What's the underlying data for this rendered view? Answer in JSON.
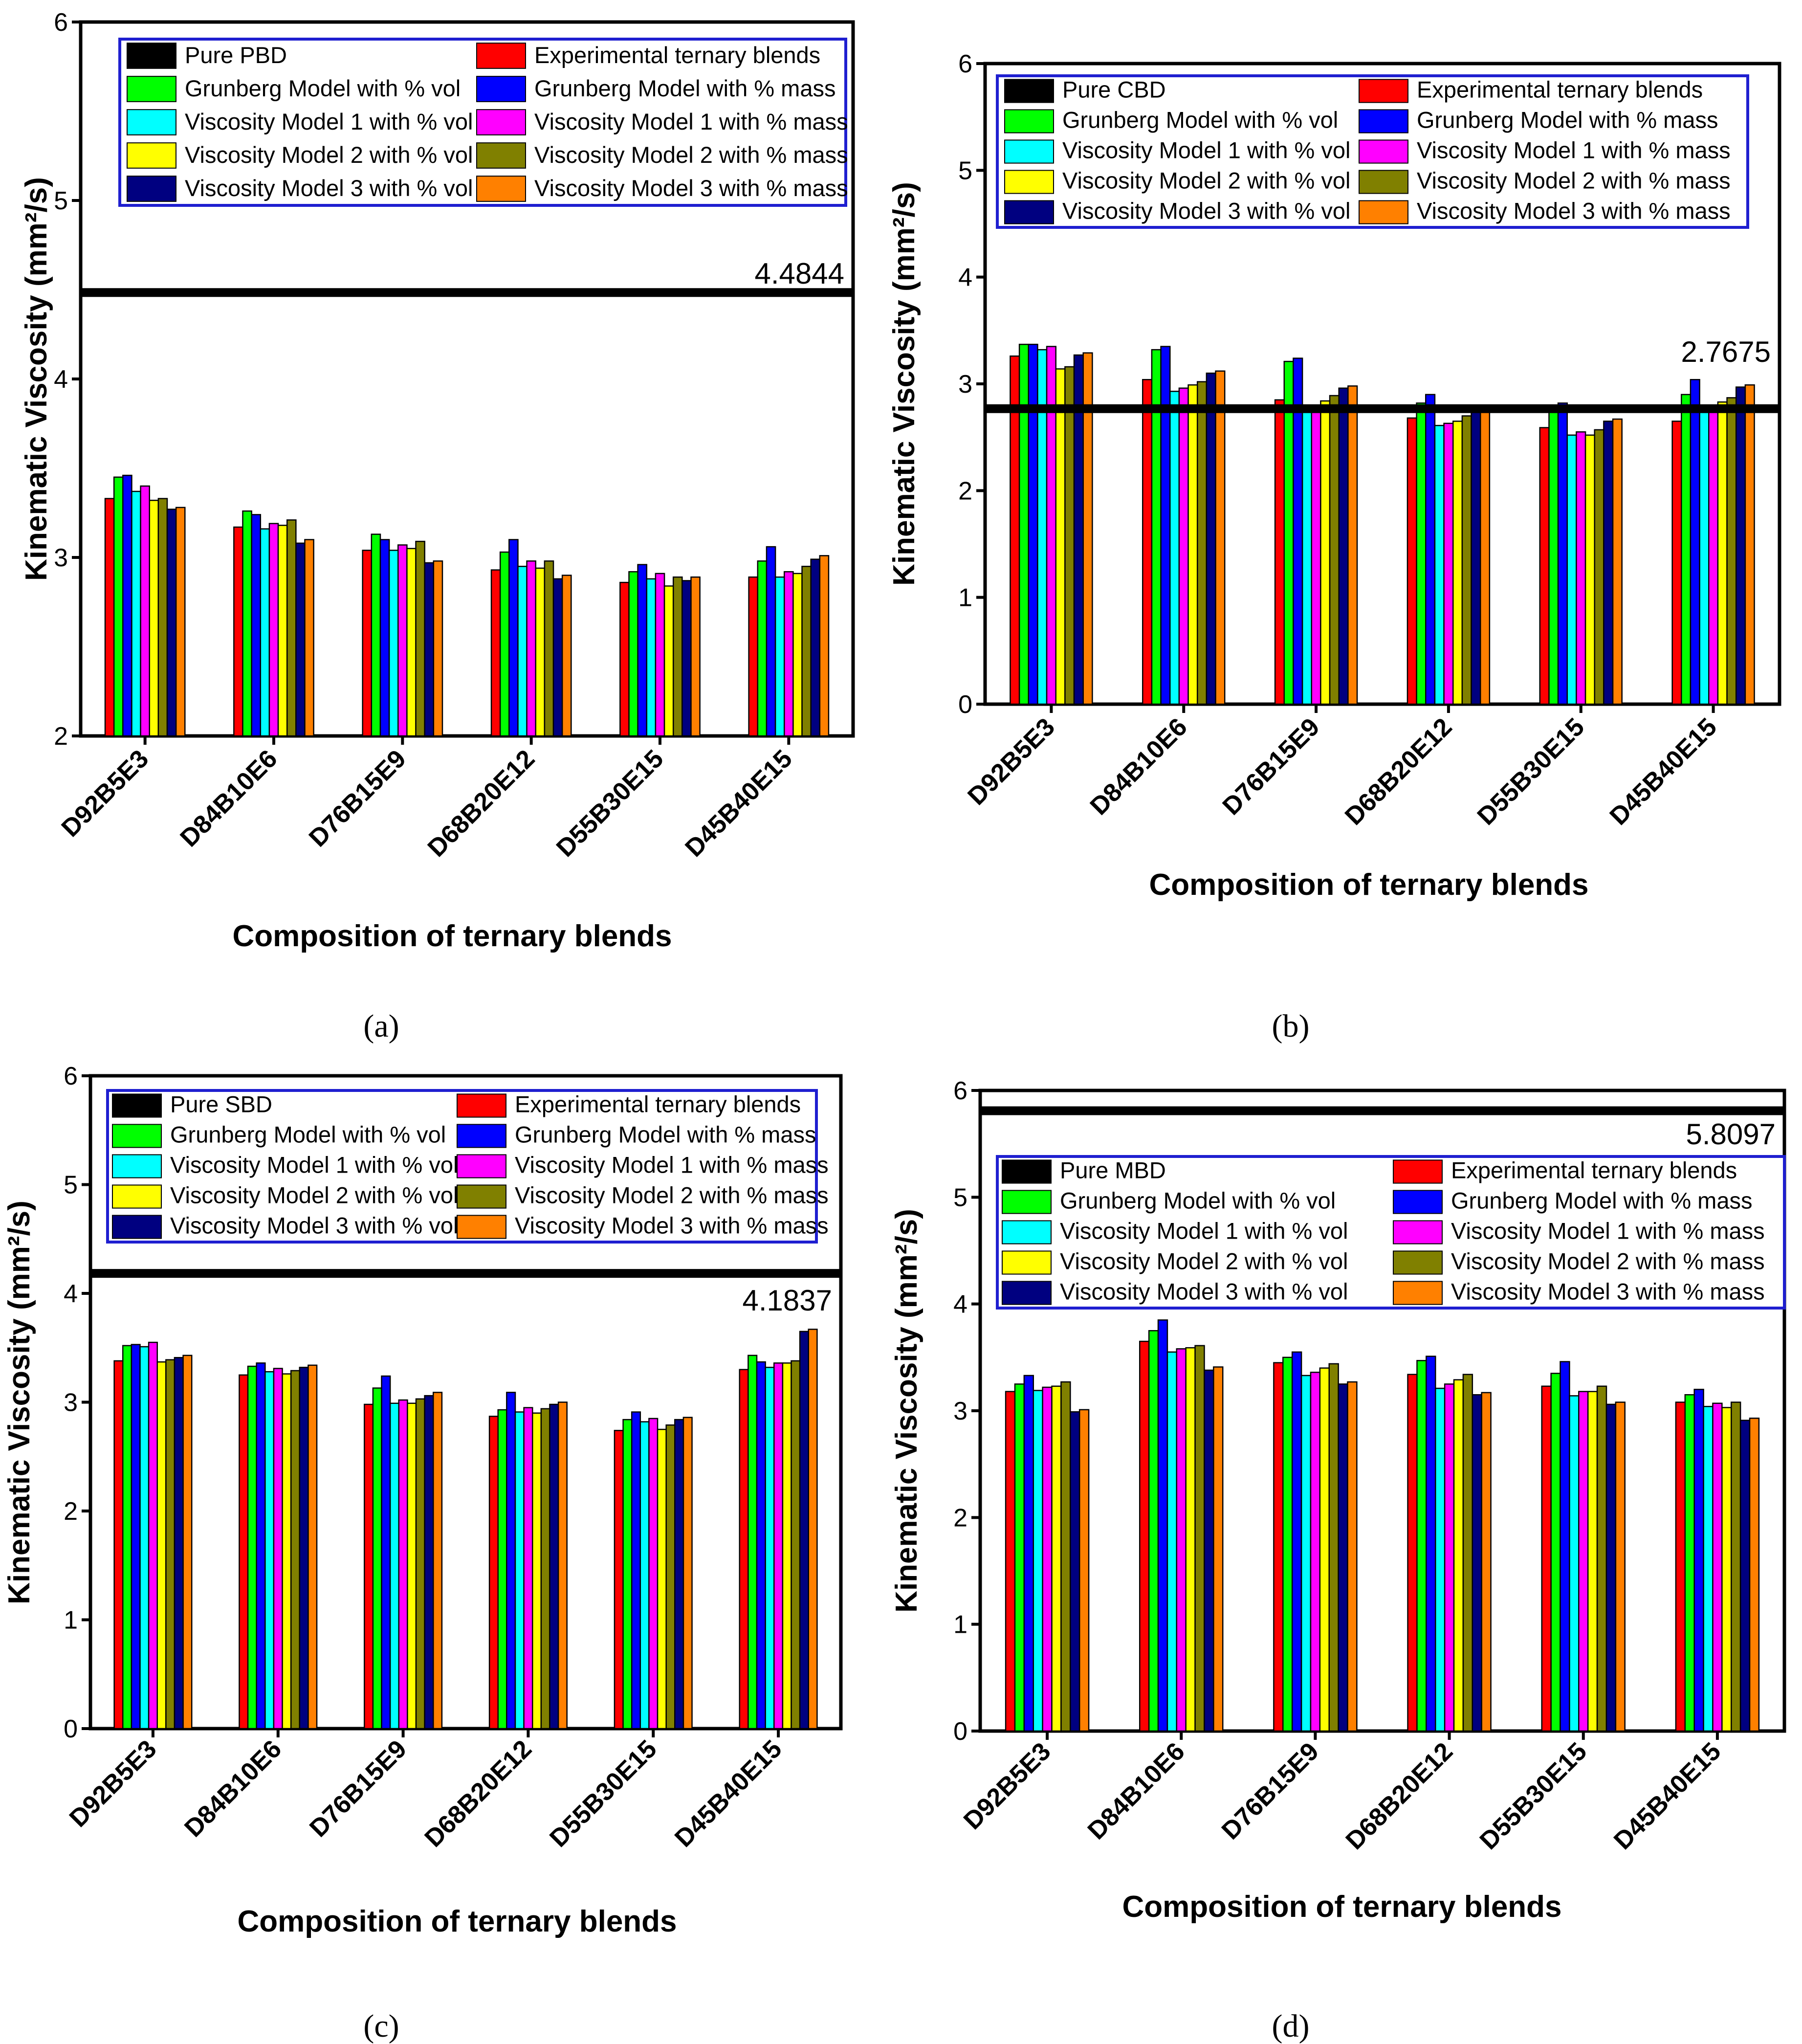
{
  "series": [
    {
      "name": "Experimental ternary blends",
      "color": "#ff0000"
    },
    {
      "name": "Grunberg Model with % vol",
      "color": "#00ff00"
    },
    {
      "name": "Grunberg Model with % mass",
      "color": "#0000ff"
    },
    {
      "name": "Viscosity Model 1 with % vol",
      "color": "#00ffff"
    },
    {
      "name": "Viscosity Model 1 with % mass",
      "color": "#ff00ff"
    },
    {
      "name": "Viscosity Model 2 with % vol",
      "color": "#ffff00"
    },
    {
      "name": "Viscosity Model 2 with % mass",
      "color": "#808000"
    },
    {
      "name": "Viscosity Model 3 with % vol",
      "color": "#000080"
    },
    {
      "name": "Viscosity Model 3 with % mass",
      "color": "#ff8000"
    }
  ],
  "chart_data": [
    {
      "panel": "a",
      "caption": "(a)",
      "type": "bar",
      "ylabel": "Kinematic Viscosity (mm²/s)",
      "xlabel": "Composition of ternary blends",
      "ylim": [
        2,
        6
      ],
      "yticks": [
        2,
        3,
        4,
        5,
        6
      ],
      "categories": [
        "D92B5E3",
        "D84B10E6",
        "D76B15E9",
        "D68B20E12",
        "D55B30E15",
        "D45B40E15"
      ],
      "reference": {
        "name": "Pure PBD",
        "value": 4.4844,
        "label": "4.4844"
      },
      "legend_position": "top",
      "values": [
        [
          3.33,
          3.45,
          3.46,
          3.37,
          3.4,
          3.32,
          3.33,
          3.27,
          3.28
        ],
        [
          3.17,
          3.26,
          3.24,
          3.16,
          3.19,
          3.18,
          3.21,
          3.08,
          3.1
        ],
        [
          3.04,
          3.13,
          3.1,
          3.04,
          3.07,
          3.05,
          3.09,
          2.97,
          2.98
        ],
        [
          2.93,
          3.03,
          3.1,
          2.95,
          2.98,
          2.94,
          2.98,
          2.88,
          2.9
        ],
        [
          2.86,
          2.92,
          2.96,
          2.88,
          2.91,
          2.84,
          2.89,
          2.87,
          2.89
        ],
        [
          2.89,
          2.98,
          3.06,
          2.89,
          2.92,
          2.91,
          2.95,
          2.99,
          3.01
        ]
      ]
    },
    {
      "panel": "b",
      "caption": "(b)",
      "type": "bar",
      "ylabel": "Kinematic Viscosity (mm²/s)",
      "xlabel": "Composition of ternary blends",
      "ylim": [
        0,
        6
      ],
      "yticks": [
        0,
        1,
        2,
        3,
        4,
        5,
        6
      ],
      "categories": [
        "D92B5E3",
        "D84B10E6",
        "D76B15E9",
        "D68B20E12",
        "D55B30E15",
        "D45B40E15"
      ],
      "reference": {
        "name": "Pure CBD",
        "value": 2.7675,
        "label": "2.7675"
      },
      "legend_position": "top",
      "values": [
        [
          3.26,
          3.37,
          3.37,
          3.32,
          3.35,
          3.14,
          3.16,
          3.27,
          3.29
        ],
        [
          3.04,
          3.32,
          3.35,
          2.93,
          2.96,
          2.99,
          3.02,
          3.1,
          3.12
        ],
        [
          2.85,
          3.21,
          3.24,
          2.74,
          2.79,
          2.84,
          2.89,
          2.96,
          2.98
        ],
        [
          2.68,
          2.82,
          2.9,
          2.61,
          2.63,
          2.65,
          2.7,
          2.77,
          2.79
        ],
        [
          2.59,
          2.74,
          2.82,
          2.52,
          2.55,
          2.52,
          2.57,
          2.65,
          2.67
        ],
        [
          2.65,
          2.9,
          3.04,
          2.74,
          2.78,
          2.83,
          2.87,
          2.97,
          2.99
        ]
      ]
    },
    {
      "panel": "c",
      "caption": "(c)",
      "type": "bar",
      "ylabel": "Kinematic Viscosity (mm²/s)",
      "xlabel": "Composition of ternary blends",
      "ylim": [
        0,
        6
      ],
      "yticks": [
        0,
        1,
        2,
        3,
        4,
        5,
        6
      ],
      "categories": [
        "D92B5E3",
        "D84B10E6",
        "D76B15E9",
        "D68B20E12",
        "D55B30E15",
        "D45B40E15"
      ],
      "reference": {
        "name": "Pure SBD",
        "value": 4.1837,
        "label": "4.1837"
      },
      "legend_position": "top",
      "values": [
        [
          3.38,
          3.52,
          3.53,
          3.51,
          3.55,
          3.37,
          3.39,
          3.41,
          3.43
        ],
        [
          3.25,
          3.33,
          3.36,
          3.28,
          3.31,
          3.26,
          3.29,
          3.32,
          3.34
        ],
        [
          2.98,
          3.13,
          3.24,
          2.99,
          3.02,
          2.99,
          3.03,
          3.06,
          3.09
        ],
        [
          2.87,
          2.93,
          3.09,
          2.91,
          2.95,
          2.9,
          2.94,
          2.98,
          3.0
        ],
        [
          2.74,
          2.84,
          2.91,
          2.82,
          2.85,
          2.75,
          2.79,
          2.84,
          2.86
        ],
        [
          3.3,
          3.43,
          3.37,
          3.32,
          3.36,
          3.36,
          3.38,
          3.65,
          3.67
        ]
      ]
    },
    {
      "panel": "d",
      "caption": "(d)",
      "type": "bar",
      "ylabel": "Kinematic Viscosity (mm²/s)",
      "xlabel": "Composition of ternary blends",
      "ylim": [
        0,
        6
      ],
      "yticks": [
        0,
        1,
        2,
        3,
        4,
        5,
        6
      ],
      "categories": [
        "D92B5E3",
        "D84B10E6",
        "D76B15E9",
        "D68B20E12",
        "D55B30E15",
        "D45B40E15"
      ],
      "reference": {
        "name": "Pure MBD",
        "value": 5.8097,
        "label": "5.8097"
      },
      "legend_position": "top",
      "values": [
        [
          3.18,
          3.25,
          3.33,
          3.19,
          3.22,
          3.23,
          3.27,
          2.99,
          3.01
        ],
        [
          3.65,
          3.75,
          3.85,
          3.55,
          3.58,
          3.59,
          3.61,
          3.38,
          3.41
        ],
        [
          3.45,
          3.5,
          3.55,
          3.33,
          3.36,
          3.4,
          3.44,
          3.25,
          3.27
        ],
        [
          3.34,
          3.47,
          3.51,
          3.21,
          3.25,
          3.29,
          3.34,
          3.15,
          3.17
        ],
        [
          3.23,
          3.35,
          3.46,
          3.14,
          3.18,
          3.18,
          3.23,
          3.06,
          3.08
        ],
        [
          3.08,
          3.15,
          3.2,
          3.04,
          3.07,
          3.03,
          3.08,
          2.91,
          2.93
        ]
      ]
    }
  ]
}
